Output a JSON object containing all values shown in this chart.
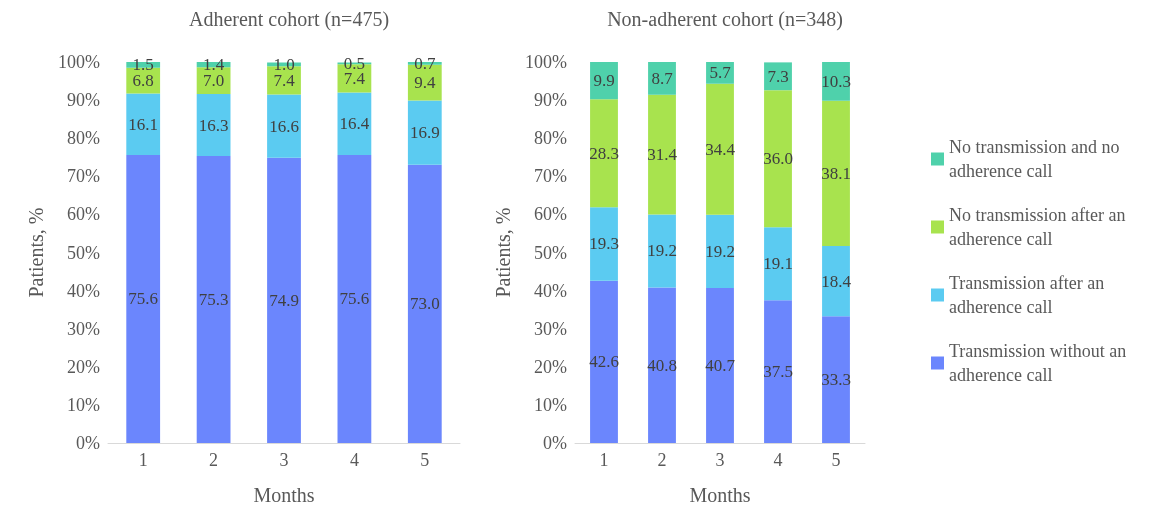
{
  "chart_data": [
    {
      "type": "bar",
      "title": "Adherent cohort (n=475)",
      "xlabel": "Months",
      "ylabel": "Patients, %",
      "categories": [
        "1",
        "2",
        "3",
        "4",
        "5"
      ],
      "stacked": true,
      "legend": false,
      "grid": false,
      "ylim": [
        0,
        100
      ],
      "yticks": [
        {
          "value": 0,
          "label": "0%"
        },
        {
          "value": 10,
          "label": "10%"
        },
        {
          "value": 20,
          "label": "20%"
        },
        {
          "value": 30,
          "label": "30%"
        },
        {
          "value": 40,
          "label": "40%"
        },
        {
          "value": 50,
          "label": "50%"
        },
        {
          "value": 60,
          "label": "60%"
        },
        {
          "value": 70,
          "label": "70%"
        },
        {
          "value": 80,
          "label": "80%"
        },
        {
          "value": 90,
          "label": "90%"
        },
        {
          "value": 100,
          "label": "100%"
        }
      ],
      "series": [
        {
          "color": "#6b86fd",
          "values": [
            75.6,
            75.3,
            74.9,
            75.6,
            73.0
          ],
          "value_labels": [
            "75.6",
            "75.3",
            "74.9",
            "75.6",
            "73.0"
          ]
        },
        {
          "color": "#5bcbf1",
          "values": [
            16.1,
            16.3,
            16.6,
            16.4,
            16.9
          ],
          "value_labels": [
            "16.1",
            "16.3",
            "16.6",
            "16.4",
            "16.9"
          ]
        },
        {
          "color": "#a8e34e",
          "values": [
            6.8,
            7.0,
            7.4,
            7.4,
            9.4
          ],
          "value_labels": [
            "6.8",
            "7.0",
            "7.4",
            "7.4",
            "9.4"
          ]
        },
        {
          "color": "#4fd1ab",
          "values": [
            1.5,
            1.4,
            1.0,
            0.5,
            0.7
          ],
          "value_labels": [
            "1.5",
            "1.4",
            "1.0",
            "0.5",
            "0.7"
          ]
        }
      ]
    },
    {
      "type": "bar",
      "title": "Non-adherent cohort (n=348)",
      "xlabel": "Months",
      "ylabel": "Patients, %",
      "categories": [
        "1",
        "2",
        "3",
        "4",
        "5"
      ],
      "stacked": true,
      "legend": "right",
      "grid": false,
      "ylim": [
        0,
        100
      ],
      "yticks": [
        {
          "value": 0,
          "label": "0%"
        },
        {
          "value": 10,
          "label": "10%"
        },
        {
          "value": 20,
          "label": "20%"
        },
        {
          "value": 30,
          "label": "30%"
        },
        {
          "value": 40,
          "label": "40%"
        },
        {
          "value": 50,
          "label": "50%"
        },
        {
          "value": 60,
          "label": "60%"
        },
        {
          "value": 70,
          "label": "70%"
        },
        {
          "value": 80,
          "label": "80%"
        },
        {
          "value": 90,
          "label": "90%"
        },
        {
          "value": 100,
          "label": "100%"
        }
      ],
      "series": [
        {
          "name": "Transmission without an adherence call",
          "color": "#6b86fd",
          "values": [
            42.6,
            40.8,
            40.7,
            37.5,
            33.3
          ],
          "value_labels": [
            "42.6",
            "40.8",
            "40.7",
            "37.5",
            "33.3"
          ]
        },
        {
          "name": "Transmission after an adherence call",
          "color": "#5bcbf1",
          "values": [
            19.3,
            19.2,
            19.2,
            19.1,
            18.4
          ],
          "value_labels": [
            "19.3",
            "19.2",
            "19.2",
            "19.1",
            "18.4"
          ]
        },
        {
          "name": "No transmission after an adherence call",
          "color": "#a8e34e",
          "values": [
            28.3,
            31.4,
            34.4,
            36.0,
            38.1
          ],
          "value_labels": [
            "28.3",
            "31.4",
            "34.4",
            "36.0",
            "38.1"
          ]
        },
        {
          "name": "No transmission and no adherence call",
          "color": "#4fd1ab",
          "values": [
            9.9,
            8.7,
            5.7,
            7.3,
            10.3
          ],
          "value_labels": [
            "9.9",
            "8.7",
            "5.7",
            "7.3",
            "10.3"
          ]
        }
      ]
    }
  ]
}
